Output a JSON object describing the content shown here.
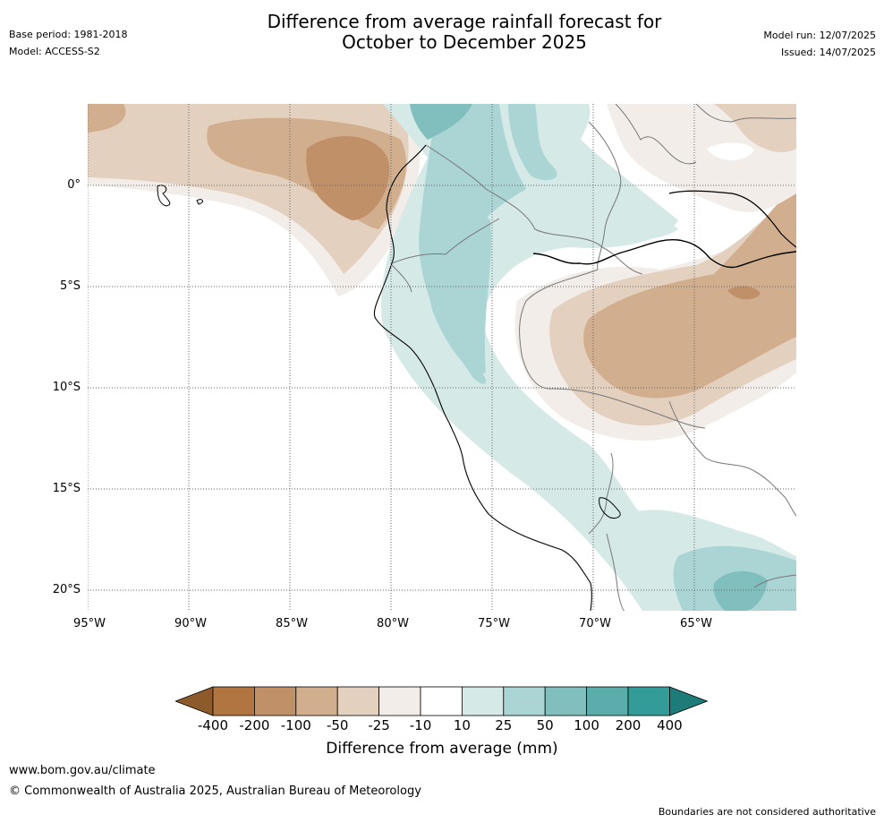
{
  "title_line1": "Difference from average rainfall forecast for",
  "title_line2": "October to December 2025",
  "base_period": "Base period: 1981-2018",
  "model": "Model: ACCESS-S2",
  "model_run": "Model run: 12/07/2025",
  "issued": "Issued: 14/07/2025",
  "lat_labels": [
    "0°",
    "5°S",
    "10°S",
    "15°S",
    "20°S"
  ],
  "lon_labels": [
    "95°W",
    "90°W",
    "85°W",
    "80°W",
    "75°W",
    "70°W",
    "65°W"
  ],
  "legend": {
    "title": "Difference from average (mm)",
    "ticks": [
      "-400",
      "-200",
      "-100",
      "-50",
      "-25",
      "-10",
      "10",
      "25",
      "50",
      "100",
      "200",
      "400"
    ],
    "colors": [
      "#8c5a2b",
      "#b07540",
      "#c09068",
      "#d1ae8e",
      "#e3d0bf",
      "#f2ede8",
      "#ffffff",
      "#d5e9e7",
      "#aad5d4",
      "#80bfbe",
      "#5aadab",
      "#339c98",
      "#1e7c78"
    ]
  },
  "footer": {
    "url": "www.bom.gov.au/climate",
    "copyright": "© Commonwealth of Australia 2025, Australian Bureau of Meteorology",
    "disclaimer": "Boundaries are not considered authoritative"
  }
}
